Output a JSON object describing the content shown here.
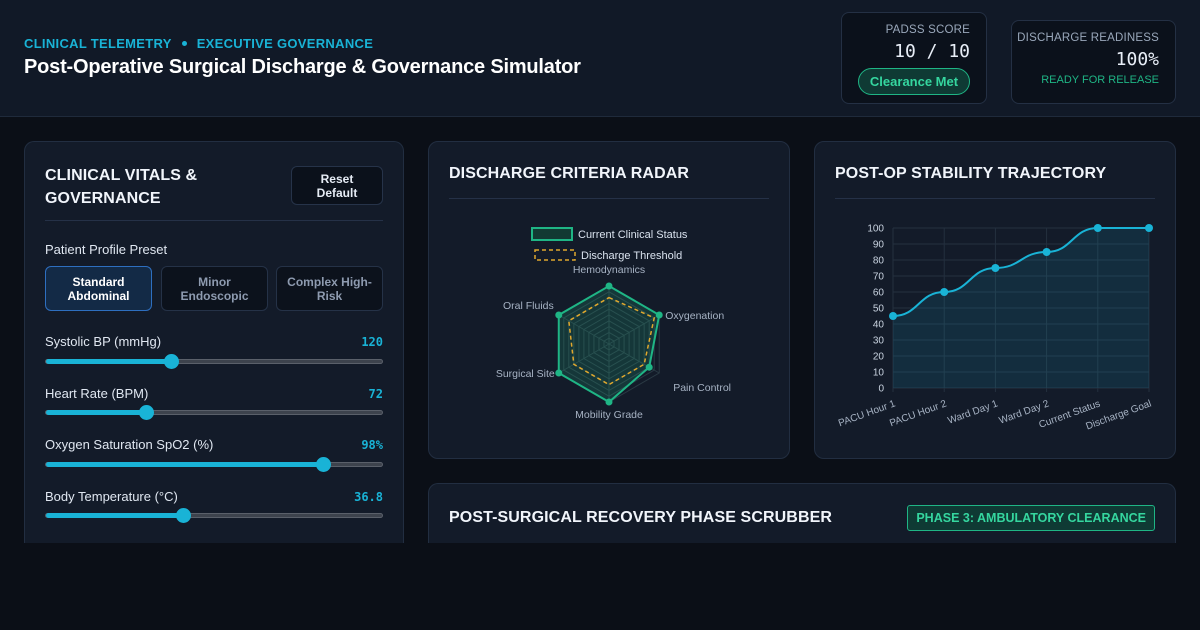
{
  "header": {
    "kicker_left": "CLINICAL TELEMETRY",
    "kicker_right": "EXECUTIVE GOVERNANCE",
    "title": "Post-Operative Surgical Discharge & Governance Simulator"
  },
  "padss": {
    "label": "PADSS SCORE",
    "value": "10 / 10",
    "status": "Clearance Met"
  },
  "readiness": {
    "label": "DISCHARGE READINESS",
    "value": "100%",
    "status": "READY FOR RELEASE"
  },
  "vitals_panel": {
    "title_line1": "CLINICAL VITALS &",
    "title_line2": "GOVERNANCE",
    "reset_line1": "Reset",
    "reset_line2": "Default",
    "preset_label": "Patient Profile Preset",
    "presets": [
      {
        "line1": "Standard",
        "line2": "Abdominal",
        "active": true
      },
      {
        "line1": "Minor",
        "line2": "Endoscopic",
        "active": false
      },
      {
        "line1": "Complex High-",
        "line2": "Risk",
        "active": false
      }
    ],
    "sliders": [
      {
        "label": "Systolic BP (mmHg)",
        "value": "120",
        "fraction": 0.37
      },
      {
        "label": "Heart Rate (BPM)",
        "value": "72",
        "fraction": 0.295
      },
      {
        "label": "Oxygen Saturation SpO2 (%)",
        "value": "98%",
        "fraction": 0.82
      },
      {
        "label": "Body Temperature (°C)",
        "value": "36.8",
        "fraction": 0.405
      }
    ]
  },
  "radar_panel": {
    "title": "DISCHARGE CRITERIA RADAR",
    "legend_current": "Current Clinical Status",
    "legend_threshold": "Discharge Threshold",
    "colors": {
      "current": "#1fb585",
      "threshold": "#e0a82e"
    }
  },
  "trajectory_panel": {
    "title": "POST-OP STABILITY TRAJECTORY"
  },
  "phase_panel": {
    "title": "POST-SURGICAL RECOVERY PHASE SCRUBBER",
    "badge": "PHASE 3: AMBULATORY CLEARANCE"
  },
  "chart_data": [
    {
      "type": "radar",
      "categories": [
        "Hemodynamics",
        "Oxygenation",
        "Pain Control",
        "Mobility Grade",
        "Surgical Site",
        "Oral Fluids"
      ],
      "series": [
        {
          "name": "Current Clinical Status",
          "values": [
            100,
            100,
            80,
            100,
            100,
            100
          ]
        },
        {
          "name": "Discharge Threshold",
          "values": [
            80,
            90,
            70,
            70,
            70,
            80
          ]
        }
      ],
      "range": [
        0,
        100
      ]
    },
    {
      "type": "line",
      "categories": [
        "PACU Hour 1",
        "PACU Hour 2",
        "Ward Day 1",
        "Ward Day 2",
        "Current Status",
        "Discharge Goal"
      ],
      "values": [
        45,
        60,
        75,
        85,
        100,
        100
      ],
      "yticks": [
        0,
        10,
        20,
        30,
        40,
        50,
        60,
        70,
        80,
        90,
        100
      ],
      "ylim": [
        0,
        100
      ],
      "grid": true
    }
  ]
}
